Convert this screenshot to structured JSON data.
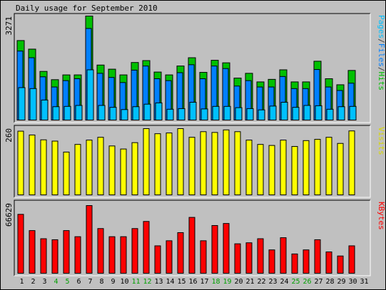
{
  "chart_data": [
    {
      "type": "bar",
      "title": "Daily usage for September 2010",
      "ylabel_max": "3271",
      "legend_parts": [
        {
          "text": "Pages",
          "color": "#00c0ff"
        },
        {
          "text": "/",
          "color": "#444444"
        },
        {
          "text": "Files",
          "color": "#0080ff"
        },
        {
          "text": "/",
          "color": "#444444"
        },
        {
          "text": "Hits",
          "color": "#00c000"
        }
      ],
      "ylim": [
        0,
        3271
      ],
      "series": [
        {
          "name": "Hits",
          "color": "#00c000",
          "values": [
            2500,
            2230,
            1530,
            1270,
            1420,
            1420,
            3271,
            1730,
            1600,
            1420,
            1810,
            1870,
            1510,
            1420,
            1700,
            1960,
            1500,
            1880,
            1800,
            1320,
            1470,
            1200,
            1280,
            1580,
            1200,
            1200,
            1850,
            1300,
            1110,
            1560,
            0
          ]
        },
        {
          "name": "Files",
          "color": "#0080ff",
          "values": [
            2170,
            1960,
            1360,
            1040,
            1240,
            1300,
            2880,
            1470,
            1340,
            1180,
            1570,
            1700,
            1300,
            1240,
            1490,
            1740,
            1300,
            1700,
            1620,
            1070,
            1240,
            1040,
            1040,
            1370,
            990,
            990,
            1590,
            1040,
            930,
            1160,
            0
          ]
        },
        {
          "name": "Pages",
          "color": "#00c0ff",
          "values": [
            1020,
            990,
            630,
            420,
            430,
            460,
            1580,
            460,
            400,
            330,
            420,
            500,
            540,
            340,
            360,
            560,
            350,
            430,
            430,
            390,
            360,
            320,
            440,
            560,
            400,
            460,
            450,
            340,
            420,
            430,
            0
          ]
        }
      ]
    },
    {
      "type": "bar",
      "ylabel_max": "260",
      "legend_parts": [
        {
          "text": "Visits",
          "color": "#d8d800"
        }
      ],
      "ylim": [
        0,
        260
      ],
      "series": [
        {
          "name": "Visits",
          "color": "#ffff00",
          "values": [
            250,
            235,
            216,
            211,
            168,
            198,
            215,
            226,
            192,
            180,
            205,
            260,
            240,
            243,
            260,
            226,
            248,
            245,
            255,
            248,
            215,
            198,
            194,
            215,
            190,
            213,
            218,
            226,
            202,
            251,
            0
          ]
        }
      ]
    },
    {
      "type": "bar",
      "ylabel_max": "66629",
      "legend_parts": [
        {
          "text": "KBytes",
          "color": "#ff0000"
        }
      ],
      "ylim": [
        0,
        66629
      ],
      "series": [
        {
          "name": "KBytes",
          "color": "#ff0000",
          "values": [
            58000,
            42000,
            34000,
            33000,
            42000,
            36000,
            66629,
            44000,
            36000,
            36000,
            44000,
            51000,
            27000,
            32000,
            40000,
            55000,
            32000,
            47000,
            49000,
            29000,
            30000,
            34000,
            23000,
            35000,
            19000,
            23000,
            33000,
            21000,
            17000,
            27000,
            0
          ]
        }
      ]
    }
  ],
  "x_labels": [
    "1",
    "2",
    "3",
    "4",
    "5",
    "6",
    "7",
    "8",
    "9",
    "10",
    "11",
    "12",
    "13",
    "14",
    "15",
    "16",
    "17",
    "18",
    "19",
    "20",
    "21",
    "22",
    "23",
    "24",
    "25",
    "26",
    "27",
    "28",
    "29",
    "30",
    "31"
  ],
  "weekend_days": [
    4,
    5,
    11,
    12,
    18,
    19,
    25,
    26
  ],
  "colors": {
    "background": "#c0c0c0",
    "panel": "#c0c0c0",
    "weekday_label": "#000000",
    "weekend_label": "#00a000"
  }
}
